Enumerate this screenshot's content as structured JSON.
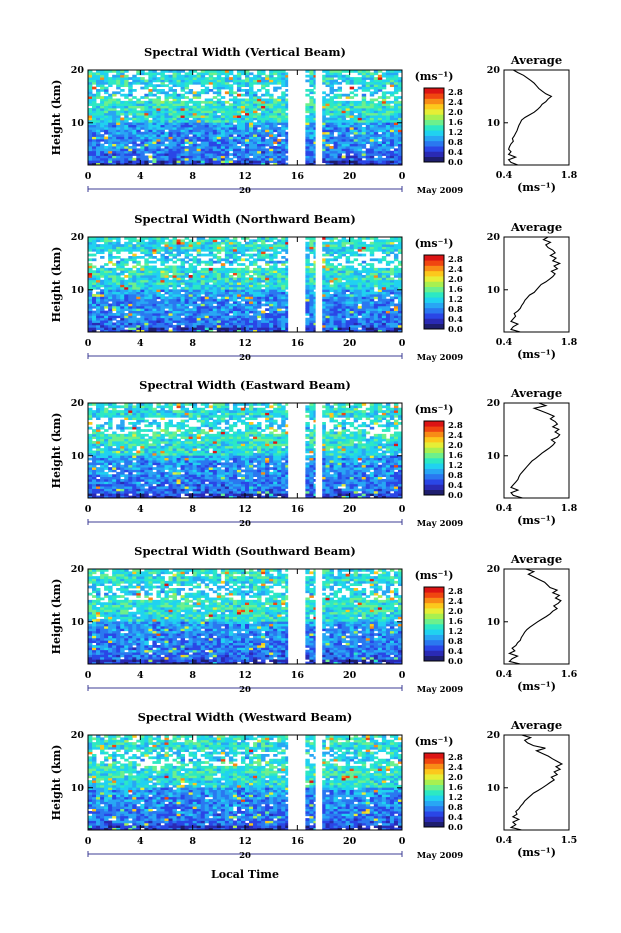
{
  "figure": {
    "xlabel": "Local Time",
    "date_label": "May 2009",
    "height_label": "Height (km)",
    "unit_label": "(ms⁻¹)",
    "average_title": "Average"
  },
  "colorbar": {
    "ticks": [
      "2.8",
      "2.4",
      "2.0",
      "1.6",
      "1.2",
      "0.8",
      "0.4",
      "0.0"
    ],
    "colors": [
      "#1e1e6e",
      "#2a2ab4",
      "#2a46e6",
      "#2a78f0",
      "#28a6f4",
      "#20d2f0",
      "#2ce8c4",
      "#6cf08c",
      "#a8f050",
      "#e6ee36",
      "#fcc81c",
      "#f88c16",
      "#f04610",
      "#dc1414"
    ]
  },
  "chart_data": [
    {
      "type": "heatmap",
      "title": "Spectral Width (Vertical Beam)",
      "x_ticks": [
        "0",
        "4",
        "8",
        "12",
        "16",
        "20",
        "0"
      ],
      "day_label": "20",
      "y_ticks": [
        "20",
        "10"
      ],
      "ylim": [
        2,
        20
      ],
      "xlim": [
        0,
        24
      ],
      "gaps": [
        [
          15.3,
          16.5
        ],
        [
          17.4,
          17.9
        ]
      ],
      "avg_xticks": [
        "0.4",
        "1.8"
      ],
      "avg_xlim": [
        0.4,
        1.8
      ],
      "avg_xlabel": "(ms⁻¹)",
      "average_profile": {
        "height": [
          2,
          2.5,
          3,
          3.5,
          4,
          4.5,
          5,
          5.5,
          6,
          6.5,
          7,
          7.5,
          8,
          8.5,
          9,
          9.5,
          10,
          10.5,
          11,
          11.5,
          12,
          12.5,
          13,
          13.5,
          14,
          14.5,
          15,
          15.5,
          16,
          16.5,
          17,
          17.5,
          18,
          18.5,
          19,
          19.5,
          20
        ],
        "width": [
          0.7,
          0.55,
          0.5,
          0.65,
          0.5,
          0.55,
          0.5,
          0.52,
          0.55,
          0.6,
          0.58,
          0.62,
          0.65,
          0.68,
          0.7,
          0.72,
          0.75,
          0.78,
          0.85,
          0.95,
          1.05,
          1.12,
          1.18,
          1.22,
          1.3,
          1.35,
          1.42,
          1.3,
          1.22,
          1.15,
          1.1,
          1.05,
          0.98,
          0.9,
          0.82,
          0.7,
          0.6
        ]
      }
    },
    {
      "type": "heatmap",
      "title": "Spectral Width (Northward Beam)",
      "x_ticks": [
        "0",
        "4",
        "8",
        "12",
        "16",
        "20",
        "0"
      ],
      "day_label": "20",
      "y_ticks": [
        "20",
        "10"
      ],
      "ylim": [
        2,
        20
      ],
      "xlim": [
        0,
        24
      ],
      "gaps": [
        [
          15.3,
          16.5
        ],
        [
          17.4,
          17.9
        ]
      ],
      "avg_xticks": [
        "0.4",
        "1.8"
      ],
      "avg_xlim": [
        0.4,
        1.8
      ],
      "avg_xlabel": "(ms⁻¹)",
      "average_profile": {
        "height": [
          2,
          2.5,
          3,
          3.5,
          4,
          4.5,
          5,
          5.5,
          6,
          6.5,
          7,
          7.5,
          8,
          8.5,
          9,
          9.5,
          10,
          10.5,
          11,
          11.5,
          12,
          12.5,
          13,
          13.5,
          14,
          14.5,
          15,
          15.5,
          16,
          16.5,
          17,
          17.5,
          18,
          18.5,
          19,
          19.5,
          20
        ],
        "width": [
          0.75,
          0.55,
          0.6,
          0.7,
          0.55,
          0.6,
          0.65,
          0.62,
          0.7,
          0.75,
          0.78,
          0.82,
          0.85,
          0.9,
          0.95,
          1.05,
          1.1,
          1.15,
          1.2,
          1.3,
          1.38,
          1.45,
          1.5,
          1.42,
          1.55,
          1.48,
          1.6,
          1.45,
          1.52,
          1.4,
          1.5,
          1.45,
          1.35,
          1.3,
          1.4,
          1.25,
          1.35
        ]
      }
    },
    {
      "type": "heatmap",
      "title": "Spectral Width (Eastward Beam)",
      "x_ticks": [
        "0",
        "4",
        "8",
        "12",
        "16",
        "20",
        "0"
      ],
      "day_label": "20",
      "y_ticks": [
        "20",
        "10"
      ],
      "ylim": [
        2,
        20
      ],
      "xlim": [
        0,
        24
      ],
      "gaps": [
        [
          15.3,
          16.5
        ],
        [
          17.4,
          17.9
        ]
      ],
      "avg_xticks": [
        "0.4",
        "1.8"
      ],
      "avg_xlim": [
        0.4,
        1.8
      ],
      "avg_xlabel": "(ms⁻¹)",
      "average_profile": {
        "height": [
          2,
          2.5,
          3,
          3.5,
          4,
          4.5,
          5,
          5.5,
          6,
          6.5,
          7,
          7.5,
          8,
          8.5,
          9,
          9.5,
          10,
          10.5,
          11,
          11.5,
          12,
          12.5,
          13,
          13.5,
          14,
          14.5,
          15,
          15.5,
          16,
          16.5,
          17,
          17.5,
          18,
          18.5,
          19,
          19.5,
          20
        ],
        "width": [
          0.8,
          0.6,
          0.55,
          0.7,
          0.55,
          0.6,
          0.65,
          0.7,
          0.72,
          0.75,
          0.8,
          0.85,
          0.9,
          0.95,
          1.0,
          1.08,
          1.15,
          1.22,
          1.3,
          1.38,
          1.45,
          1.5,
          1.42,
          1.55,
          1.6,
          1.5,
          1.58,
          1.45,
          1.55,
          1.5,
          1.4,
          1.48,
          1.35,
          1.2,
          1.05,
          1.3,
          1.15
        ]
      }
    },
    {
      "type": "heatmap",
      "title": "Spectral Width (Southward Beam)",
      "x_ticks": [
        "0",
        "4",
        "8",
        "12",
        "16",
        "20",
        "0"
      ],
      "day_label": "20",
      "y_ticks": [
        "20",
        "10"
      ],
      "ylim": [
        2,
        20
      ],
      "xlim": [
        0,
        24
      ],
      "gaps": [
        [
          15.3,
          16.5
        ],
        [
          17.4,
          17.9
        ]
      ],
      "avg_xticks": [
        "0.4",
        "1.6"
      ],
      "avg_xlim": [
        0.4,
        1.6
      ],
      "avg_xlabel": "(ms⁻¹)",
      "average_profile": {
        "height": [
          2,
          2.5,
          3,
          3.5,
          4,
          4.5,
          5,
          5.5,
          6,
          6.5,
          7,
          7.5,
          8,
          8.5,
          9,
          9.5,
          10,
          10.5,
          11,
          11.5,
          12,
          12.5,
          13,
          13.5,
          14,
          14.5,
          15,
          15.5,
          16,
          16.5,
          17,
          17.5,
          18,
          18.5,
          19,
          19.5,
          20
        ],
        "width": [
          0.7,
          0.5,
          0.55,
          0.65,
          0.5,
          0.6,
          0.55,
          0.62,
          0.65,
          0.7,
          0.72,
          0.75,
          0.78,
          0.82,
          0.88,
          0.95,
          1.02,
          1.1,
          1.18,
          1.25,
          1.3,
          1.38,
          1.32,
          1.4,
          1.45,
          1.35,
          1.42,
          1.3,
          1.38,
          1.25,
          1.2,
          1.15,
          1.05,
          0.95,
          0.85,
          0.95,
          0.8
        ]
      }
    },
    {
      "type": "heatmap",
      "title": "Spectral Width (Westward Beam)",
      "x_ticks": [
        "0",
        "4",
        "8",
        "12",
        "16",
        "20",
        "0"
      ],
      "day_label": "20",
      "y_ticks": [
        "20",
        "10"
      ],
      "ylim": [
        2,
        20
      ],
      "xlim": [
        0,
        24
      ],
      "gaps": [
        [
          15.3,
          16.5
        ],
        [
          17.4,
          17.9
        ]
      ],
      "avg_xticks": [
        "0.4",
        "1.5"
      ],
      "avg_xlim": [
        0.4,
        1.5
      ],
      "avg_xlabel": "(ms⁻¹)",
      "average_profile": {
        "height": [
          2,
          2.5,
          3,
          3.5,
          4,
          4.5,
          5,
          5.5,
          6,
          6.5,
          7,
          7.5,
          8,
          8.5,
          9,
          9.5,
          10,
          10.5,
          11,
          11.5,
          12,
          12.5,
          13,
          13.5,
          14,
          14.5,
          15,
          15.5,
          16,
          16.5,
          17,
          17.5,
          18,
          18.5,
          19,
          19.5,
          20
        ],
        "width": [
          0.7,
          0.52,
          0.6,
          0.55,
          0.65,
          0.55,
          0.62,
          0.6,
          0.65,
          0.68,
          0.72,
          0.75,
          0.8,
          0.85,
          0.9,
          0.98,
          1.05,
          1.12,
          1.18,
          1.25,
          1.2,
          1.3,
          1.25,
          1.35,
          1.28,
          1.38,
          1.3,
          1.22,
          1.15,
          1.05,
          0.95,
          1.1,
          0.9,
          0.8,
          0.75,
          0.85,
          0.7
        ]
      }
    }
  ]
}
